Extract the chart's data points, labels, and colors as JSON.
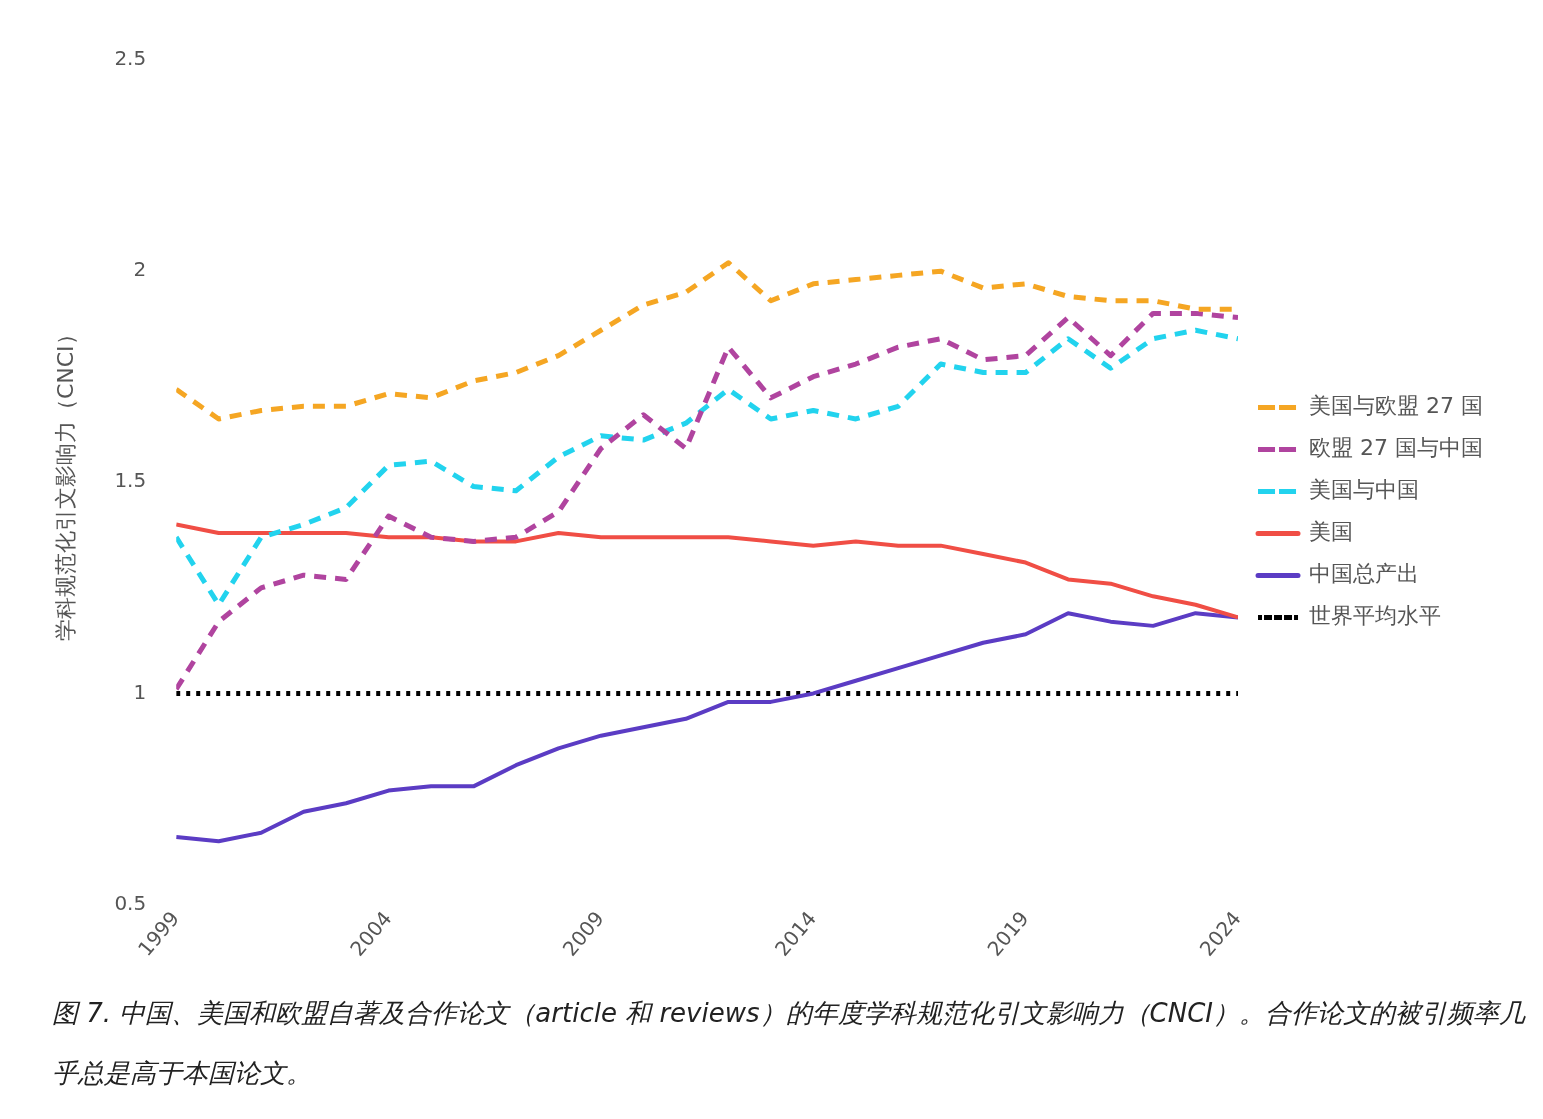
{
  "chart_data": {
    "type": "line",
    "x": [
      1999,
      2000,
      2001,
      2002,
      2003,
      2004,
      2005,
      2006,
      2007,
      2008,
      2009,
      2010,
      2011,
      2012,
      2013,
      2014,
      2015,
      2016,
      2017,
      2018,
      2019,
      2020,
      2021,
      2022,
      2023,
      2024
    ],
    "xlim": [
      1999,
      2024
    ],
    "xticks": [
      1999,
      2004,
      2009,
      2014,
      2019,
      2024
    ],
    "ylim": [
      0.5,
      2.5
    ],
    "yticks": [
      0.5,
      1,
      1.5,
      2,
      2.5
    ],
    "ylabel": "学科规范化引文影响力（CNCI）",
    "grid": false,
    "legend": "right",
    "series": [
      {
        "name": "美国与欧盟 27 国",
        "color": "#f5a623",
        "line_style": "dashed",
        "values": [
          1.72,
          1.65,
          1.67,
          1.68,
          1.68,
          1.71,
          1.7,
          1.74,
          1.76,
          1.8,
          1.86,
          1.92,
          1.95,
          2.02,
          1.93,
          1.97,
          1.98,
          1.99,
          2.0,
          1.96,
          1.97,
          1.94,
          1.93,
          1.93,
          1.91,
          1.91
        ]
      },
      {
        "name": "欧盟 27 国与中国",
        "color": "#b0449f",
        "line_style": "dashed",
        "values": [
          1.01,
          1.17,
          1.25,
          1.28,
          1.27,
          1.42,
          1.37,
          1.36,
          1.37,
          1.43,
          1.58,
          1.66,
          1.58,
          1.82,
          1.7,
          1.75,
          1.78,
          1.82,
          1.84,
          1.79,
          1.8,
          1.89,
          1.8,
          1.9,
          1.9,
          1.89
        ]
      },
      {
        "name": "美国与中国",
        "color": "#22d3ee",
        "line_style": "dashed",
        "values": [
          1.37,
          1.21,
          1.37,
          1.4,
          1.44,
          1.54,
          1.55,
          1.49,
          1.48,
          1.56,
          1.61,
          1.6,
          1.64,
          1.72,
          1.65,
          1.67,
          1.65,
          1.68,
          1.78,
          1.76,
          1.76,
          1.84,
          1.77,
          1.84,
          1.86,
          1.84
        ]
      },
      {
        "name": "美国",
        "color": "#f04e45",
        "line_style": "solid",
        "values": [
          1.4,
          1.38,
          1.38,
          1.38,
          1.38,
          1.37,
          1.37,
          1.36,
          1.36,
          1.38,
          1.37,
          1.37,
          1.37,
          1.37,
          1.36,
          1.35,
          1.36,
          1.35,
          1.35,
          1.33,
          1.31,
          1.27,
          1.26,
          1.23,
          1.21,
          1.18
        ]
      },
      {
        "name": "中国总产出",
        "color": "#5b3cc4",
        "line_style": "solid",
        "values": [
          0.66,
          0.65,
          0.67,
          0.72,
          0.74,
          0.77,
          0.78,
          0.78,
          0.83,
          0.87,
          0.9,
          0.92,
          0.94,
          0.98,
          0.98,
          1.0,
          1.03,
          1.06,
          1.09,
          1.12,
          1.14,
          1.19,
          1.17,
          1.16,
          1.19,
          1.18
        ]
      },
      {
        "name": "世界平均水平",
        "color": "#000000",
        "line_style": "dotted",
        "values": [
          1,
          1,
          1,
          1,
          1,
          1,
          1,
          1,
          1,
          1,
          1,
          1,
          1,
          1,
          1,
          1,
          1,
          1,
          1,
          1,
          1,
          1,
          1,
          1,
          1,
          1
        ]
      }
    ],
    "annotations": [
      "图 7. 中国、美国和欧盟自著及合作论文（article 和 reviews）的年度学科规范化引文影响力（CNCI）。合作论文的被引频率几乎总是高于本国论文。"
    ]
  }
}
